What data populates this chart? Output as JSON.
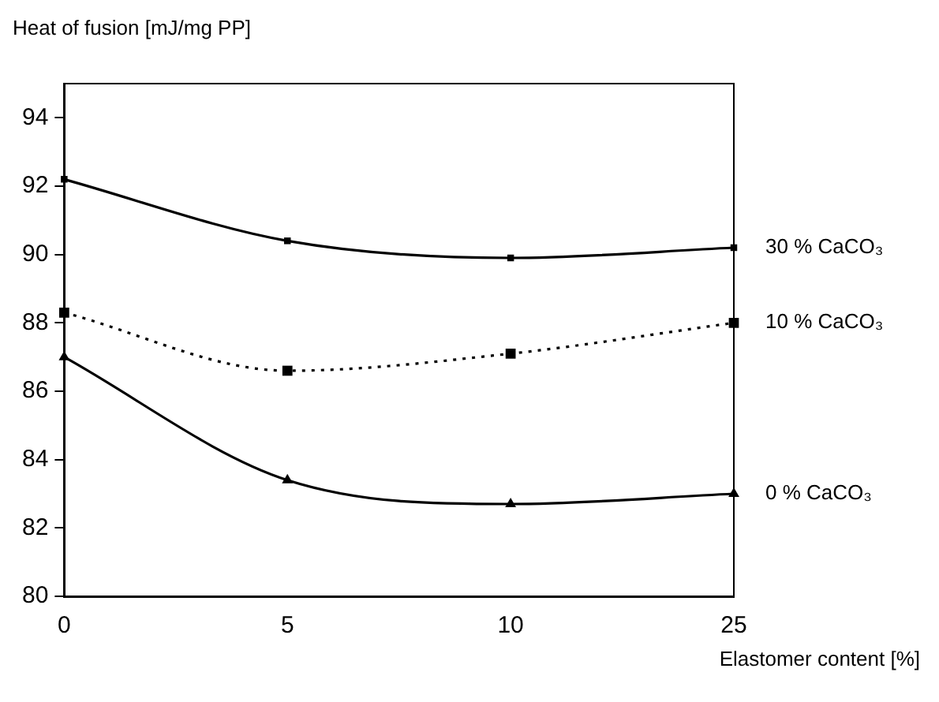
{
  "chart_data": {
    "type": "line",
    "ylabel": "Heat of fusion [mJ/mg PP]",
    "xlabel": "Elastomer content [%]",
    "categories": [
      "0",
      "5",
      "10",
      "25"
    ],
    "ylim": [
      80,
      95
    ],
    "yticks": [
      80,
      82,
      84,
      86,
      88,
      90,
      92,
      94
    ],
    "grid": false,
    "legend": false,
    "series": [
      {
        "name": "30 % CaCO₃",
        "color": "#000000",
        "marker": "square",
        "line_style": "solid",
        "values": [
          92.2,
          90.4,
          89.9,
          90.2
        ]
      },
      {
        "name": "10 % CaCO₃",
        "color": "#000000",
        "marker": "square",
        "line_style": "dotted",
        "values": [
          88.3,
          86.6,
          87.1,
          88.0
        ]
      },
      {
        "name": "0 % CaCO₃",
        "color": "#000000",
        "marker": "triangle",
        "line_style": "solid",
        "values": [
          87.0,
          83.4,
          82.7,
          83.0
        ]
      }
    ]
  }
}
